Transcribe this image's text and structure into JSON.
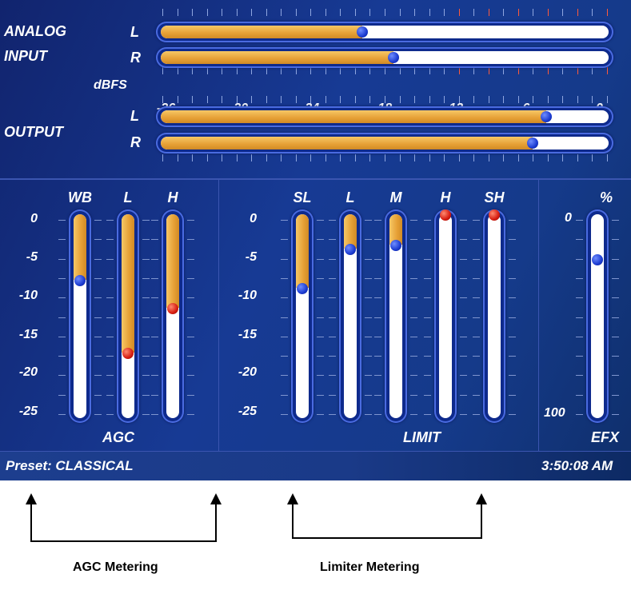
{
  "input_section": {
    "title_line1": "ANALOG",
    "title_line2": "INPUT",
    "channel_l": "L",
    "channel_r": "R",
    "scale_unit": "dBFS",
    "scale_labels": [
      "-36",
      "-30",
      "-24",
      "-18",
      "-12",
      "-6",
      "0"
    ],
    "level_l_fraction": 0.45,
    "level_r_fraction": 0.52
  },
  "output_section": {
    "title": "OUTPUT",
    "channel_l": "L",
    "channel_r": "R",
    "level_l_fraction": 0.86,
    "level_r_fraction": 0.83
  },
  "agc": {
    "title": "AGC",
    "scale_labels": [
      "0",
      "-5",
      "-10",
      "-15",
      "-20",
      "-25"
    ],
    "meters": [
      {
        "label": "WB",
        "fill_fraction": 0.32,
        "dot_color": "blue"
      },
      {
        "label": "L",
        "fill_fraction": 0.68,
        "dot_color": "red"
      },
      {
        "label": "H",
        "fill_fraction": 0.46,
        "dot_color": "red"
      }
    ]
  },
  "limit": {
    "title": "LIMIT",
    "scale_labels": [
      "0",
      "-5",
      "-10",
      "-15",
      "-20",
      "-25"
    ],
    "meters": [
      {
        "label": "SL",
        "fill_fraction": 0.36,
        "dot_color": "blue"
      },
      {
        "label": "L",
        "fill_fraction": 0.17,
        "dot_color": "blue"
      },
      {
        "label": "M",
        "fill_fraction": 0.15,
        "dot_color": "blue"
      },
      {
        "label": "H",
        "fill_fraction": 0.0,
        "dot_color": "red"
      },
      {
        "label": "SH",
        "fill_fraction": 0.0,
        "dot_color": "red"
      }
    ]
  },
  "efx": {
    "title": "EFX",
    "unit": "%",
    "scale_top": "0",
    "scale_bottom": "100",
    "fill_fraction": 0.0,
    "dot_fraction": 0.22,
    "dot_color": "blue"
  },
  "status_bar": {
    "preset": "Preset: CLASSICAL",
    "time": "3:50:08 AM"
  },
  "captions": {
    "agc": "AGC Metering",
    "limiter": "Limiter Metering"
  },
  "colors": {
    "panel_bg": "#173a94",
    "fill": "#e6a035",
    "dot_blue": "#1b3bd1",
    "dot_red": "#d61c10",
    "peak_tick": "#ff5a3a"
  }
}
